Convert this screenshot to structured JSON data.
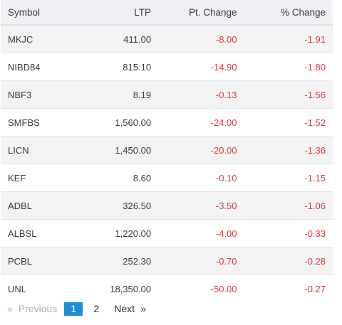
{
  "table": {
    "headers": {
      "symbol": "Symbol",
      "ltp": "LTP",
      "pt_change": "Pt. Change",
      "pct_change": "% Change"
    },
    "rows": [
      {
        "symbol": "MKJC",
        "ltp": "411.00",
        "pt_change": "-8.00",
        "pct_change": "-1.91"
      },
      {
        "symbol": "NIBD84",
        "ltp": "815.10",
        "pt_change": "-14.90",
        "pct_change": "-1.80"
      },
      {
        "symbol": "NBF3",
        "ltp": "8.19",
        "pt_change": "-0.13",
        "pct_change": "-1.56"
      },
      {
        "symbol": "SMFBS",
        "ltp": "1,560.00",
        "pt_change": "-24.00",
        "pct_change": "-1.52"
      },
      {
        "symbol": "LICN",
        "ltp": "1,450.00",
        "pt_change": "-20.00",
        "pct_change": "-1.36"
      },
      {
        "symbol": "KEF",
        "ltp": "8.60",
        "pt_change": "-0.10",
        "pct_change": "-1.15"
      },
      {
        "symbol": "ADBL",
        "ltp": "326.50",
        "pt_change": "-3.50",
        "pct_change": "-1.06"
      },
      {
        "symbol": "ALBSL",
        "ltp": "1,220.00",
        "pt_change": "-4.00",
        "pct_change": "-0.33"
      },
      {
        "symbol": "PCBL",
        "ltp": "252.30",
        "pt_change": "-0.70",
        "pct_change": "-0.28"
      },
      {
        "symbol": "UNL",
        "ltp": "18,350.00",
        "pt_change": "-50.00",
        "pct_change": "-0.27"
      }
    ]
  },
  "pagination": {
    "prev_icon": "«",
    "prev_label": "Previous",
    "pages": [
      "1",
      "2"
    ],
    "active_page": "1",
    "next_label": "Next",
    "next_icon": "»"
  },
  "colors": {
    "negative": "#e0393e",
    "active_page": "#1a8fd6",
    "header_bg": "#eef0f3",
    "stripe_bg": "#f3f3f4"
  }
}
